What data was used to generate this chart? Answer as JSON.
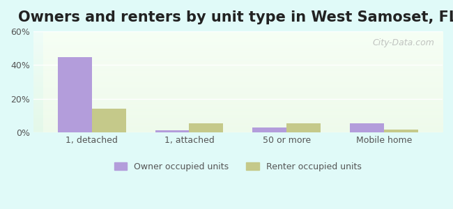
{
  "title": "Owners and renters by unit type in West Samoset, FL",
  "categories": [
    "1, detached",
    "1, attached",
    "50 or more",
    "Mobile home"
  ],
  "owner_values": [
    44.5,
    1.2,
    3.0,
    5.2
  ],
  "renter_values": [
    14.0,
    5.2,
    5.2,
    1.5
  ],
  "owner_color": "#b39ddb",
  "renter_color": "#c5c98a",
  "ylim": [
    0,
    60
  ],
  "yticks": [
    0,
    20,
    40,
    60
  ],
  "ytick_labels": [
    "0%",
    "20%",
    "40%",
    "60%"
  ],
  "background_color": "#e0faf8",
  "plot_bg_top": "#f0faf0",
  "plot_bg_bottom": "#f8fff8",
  "bar_width": 0.35,
  "title_fontsize": 15,
  "legend_labels": [
    "Owner occupied units",
    "Renter occupied units"
  ],
  "watermark": "City-Data.com"
}
